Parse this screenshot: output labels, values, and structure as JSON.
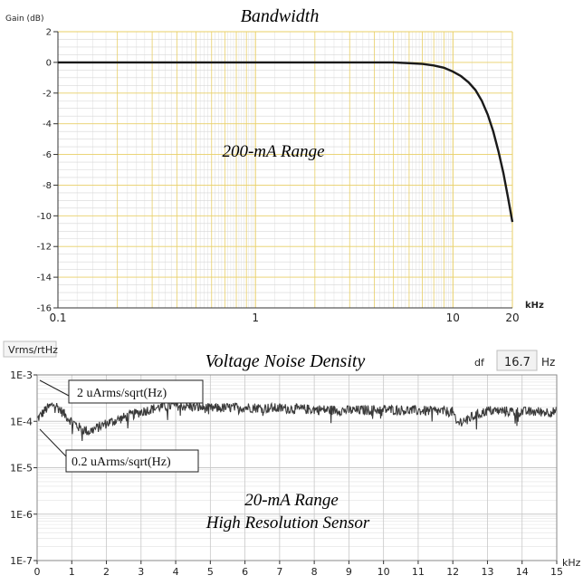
{
  "colors": {
    "background": "#ffffff",
    "grid_major": "#e8cf66",
    "grid_minor": "#d6d6d6",
    "noise_grid": "#c8c8c8",
    "curve": "#1a1a1a",
    "noise_trace": "#3a3a3a",
    "axis": "#333333"
  },
  "chart_data": [
    {
      "type": "line",
      "title": "Bandwidth",
      "ylabel": "Gain (dB)",
      "xlabel": "kHz",
      "xscale": "log",
      "xlim": [
        0.1,
        20
      ],
      "ylim": [
        -16,
        2
      ],
      "x_ticks": [
        0.1,
        1,
        10,
        20
      ],
      "x_tick_labels": [
        "0.1",
        "1",
        "10",
        "20"
      ],
      "y_ticks": [
        2,
        0,
        -2,
        -4,
        -6,
        -8,
        -10,
        -12,
        -14,
        -16
      ],
      "grid": true,
      "annotation": "200-mA Range",
      "series": [
        {
          "x": [
            0.1,
            0.2,
            0.5,
            1,
            2,
            3,
            4,
            5,
            6,
            7,
            8,
            9,
            10,
            11,
            12,
            13,
            14,
            15,
            16,
            17,
            18,
            19,
            20
          ],
          "y": [
            0,
            0,
            0,
            0,
            0,
            0,
            0,
            0,
            -0.05,
            -0.1,
            -0.2,
            -0.35,
            -0.6,
            -0.9,
            -1.3,
            -1.8,
            -2.5,
            -3.4,
            -4.5,
            -5.8,
            -7.2,
            -8.8,
            -10.4
          ]
        }
      ]
    },
    {
      "type": "line",
      "title": "Voltage Noise Density",
      "ylabel": "Vrms/rtHz",
      "xlabel": "kHz",
      "yscale": "log",
      "xlim": [
        0,
        15
      ],
      "ylim": [
        1e-07,
        0.001
      ],
      "x_ticks": [
        0,
        1,
        2,
        3,
        4,
        5,
        6,
        7,
        8,
        9,
        10,
        11,
        12,
        13,
        14,
        15
      ],
      "x_tick_labels": [
        "0",
        "1",
        "2",
        "3",
        "4",
        "5",
        "6",
        "7",
        "8",
        "9",
        "10",
        "11",
        "12",
        "13",
        "14",
        "15"
      ],
      "y_ticks": [
        0.001,
        0.0001,
        1e-05,
        1e-06,
        1e-07
      ],
      "y_tick_labels": [
        "1E-3",
        "1E-4",
        "1E-5",
        "1E-6",
        "1E-7"
      ],
      "grid": true,
      "df_label": "df",
      "df_value": "16.7",
      "df_unit": "Hz",
      "annotations": [
        "2 uArms/sqrt(Hz)",
        "0.2 uArms/sqrt(Hz)",
        "20-mA  Range",
        "High Resolution Sensor"
      ],
      "series": [
        {
          "x": [
            0,
            0.25,
            0.5,
            0.75,
            1,
            1.25,
            1.5,
            2,
            2.5,
            3,
            3.5,
            4,
            5,
            6,
            7,
            8,
            9,
            10,
            11,
            12,
            12.1,
            13,
            14,
            15
          ],
          "y": [
            0.00011,
            0.00018,
            0.00024,
            0.00015,
            0.0001,
            7e-05,
            6e-05,
            9e-05,
            0.00012,
            0.00016,
            0.0002,
            0.00022,
            0.00019,
            0.0002,
            0.00019,
            0.00018,
            0.00017,
            0.00018,
            0.00017,
            0.00016,
            9e-05,
            0.00017,
            0.00016,
            0.00016
          ]
        }
      ]
    }
  ]
}
